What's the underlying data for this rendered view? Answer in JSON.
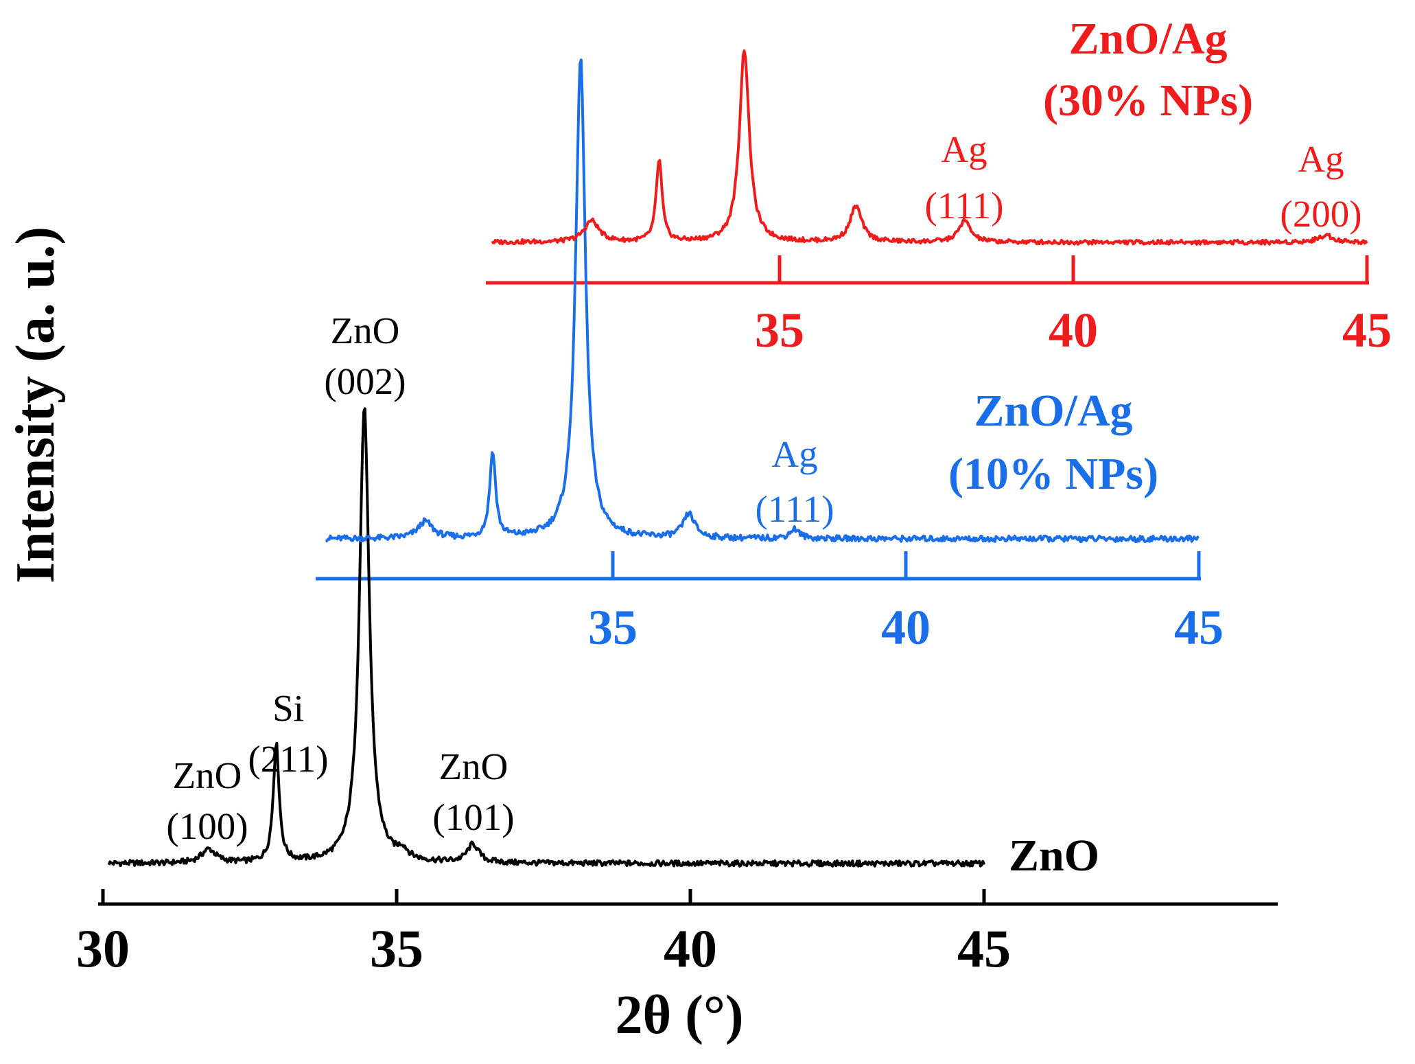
{
  "chart_data": {
    "type": "line",
    "title": "",
    "xlabel": "2θ (°)",
    "ylabel": "Intensity (a. u.)",
    "xlim": [
      30,
      50
    ],
    "grid": false,
    "series": [
      {
        "key": "zno",
        "name": "ZnO",
        "color": "#000000",
        "x_range": [
          30.1,
          45
        ],
        "x_ticks": [
          30,
          35,
          40,
          45
        ],
        "peaks": [
          {
            "x": 31.8,
            "height": 0.03,
            "width": 0.15
          },
          {
            "x": 32.95,
            "height": 0.26,
            "width": 0.06
          },
          {
            "x": 34.45,
            "height": 1.0,
            "width": 0.1
          },
          {
            "x": 35.1,
            "height": 0.02,
            "width": 0.1
          },
          {
            "x": 36.3,
            "height": 0.04,
            "width": 0.12
          }
        ],
        "peak_labels": [
          {
            "material": "ZnO",
            "hkl": "(100)",
            "x": 31.8
          },
          {
            "material": "Si",
            "hkl": "(211)",
            "x": 32.95
          },
          {
            "material": "ZnO",
            "hkl": "(002)",
            "x": 34.45
          },
          {
            "material": "ZnO",
            "hkl": "(101)",
            "x": 36.3
          }
        ]
      },
      {
        "key": "zno_ag_10",
        "name": "ZnO/Ag",
        "subtitle": "(10% NPs)",
        "color": "#1a6ee8",
        "x_range": [
          30.1,
          45
        ],
        "x_ticks": [
          35,
          40,
          45
        ],
        "peaks": [
          {
            "x": 31.8,
            "height": 0.035,
            "width": 0.15
          },
          {
            "x": 32.95,
            "height": 0.18,
            "width": 0.06
          },
          {
            "x": 34.45,
            "height": 1.0,
            "width": 0.1
          },
          {
            "x": 36.3,
            "height": 0.05,
            "width": 0.12
          },
          {
            "x": 38.1,
            "height": 0.02,
            "width": 0.1
          }
        ],
        "peak_labels": [
          {
            "material": "Ag",
            "hkl": "(111)",
            "x": 38.1
          }
        ]
      },
      {
        "key": "zno_ag_30",
        "name": "ZnO/Ag",
        "subtitle": "(30% NPs)",
        "color": "#ee1c1c",
        "x_range": [
          30.1,
          45
        ],
        "x_ticks": [
          35,
          40,
          45
        ],
        "peaks": [
          {
            "x": 31.8,
            "height": 0.06,
            "width": 0.15
          },
          {
            "x": 32.95,
            "height": 0.23,
            "width": 0.06
          },
          {
            "x": 34.4,
            "height": 0.54,
            "width": 0.1
          },
          {
            "x": 36.3,
            "height": 0.1,
            "width": 0.12
          },
          {
            "x": 38.15,
            "height": 0.06,
            "width": 0.12
          },
          {
            "x": 44.3,
            "height": 0.02,
            "width": 0.15
          }
        ],
        "peak_labels": [
          {
            "material": "Ag",
            "hkl": "(111)",
            "x": 38.15
          },
          {
            "material": "Ag",
            "hkl": "(200)",
            "x": 44.3
          }
        ]
      }
    ]
  }
}
